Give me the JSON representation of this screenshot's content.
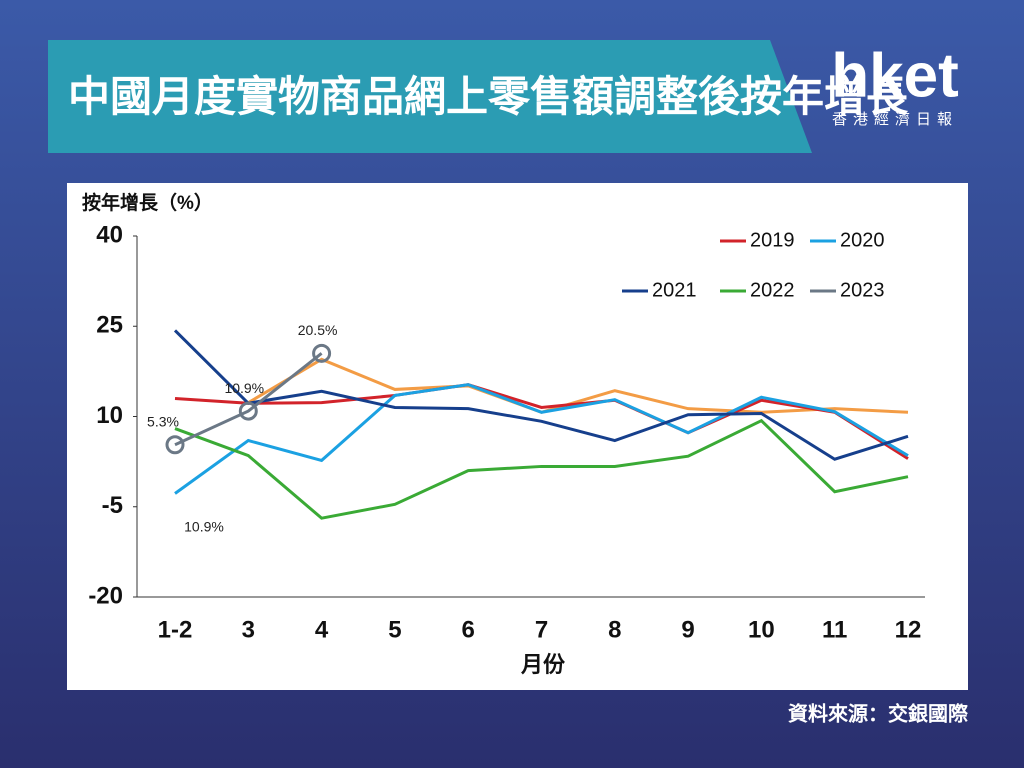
{
  "header": {
    "title": "中國月度實物商品網上零售額調整後按年增長",
    "logo": "hket",
    "logo_sub": "香港經濟日報"
  },
  "source": "資料來源：交銀國際",
  "chart_data": {
    "type": "line",
    "ylabel": "按年增長（%）",
    "xlabel": "月份",
    "categories": [
      "1-2",
      "3",
      "4",
      "5",
      "6",
      "7",
      "8",
      "9",
      "10",
      "11",
      "12"
    ],
    "ylim": [
      -20,
      40
    ],
    "yticks": [
      -20,
      -5,
      10,
      25,
      40
    ],
    "annotation": "10.9%",
    "series": [
      {
        "color": "#f39c45",
        "values": [
          null,
          12.3,
          19.5,
          14.5,
          15.1,
          10.7,
          14.3,
          11.3,
          10.7,
          11.3,
          10.7
        ]
      },
      {
        "name": "2019",
        "color": "#d2232a",
        "values": [
          13.0,
          12.2,
          12.3,
          13.5,
          15.3,
          11.5,
          12.7,
          7.3,
          12.7,
          10.7,
          3.0
        ]
      },
      {
        "name": "2020",
        "color": "#1ba1e2",
        "values": [
          -2.8,
          6.0,
          2.7,
          13.5,
          15.3,
          10.7,
          12.8,
          7.3,
          13.2,
          10.8,
          3.5
        ]
      },
      {
        "name": "2021",
        "color": "#163f8c",
        "values": [
          24.3,
          12.2,
          14.2,
          11.5,
          11.3,
          9.2,
          6.0,
          10.3,
          10.5,
          2.9,
          6.7
        ]
      },
      {
        "name": "2022",
        "color": "#3aaa35",
        "values": [
          8.0,
          3.5,
          -6.9,
          -4.6,
          1.0,
          1.7,
          1.7,
          3.4,
          9.3,
          -2.5,
          0.0
        ]
      },
      {
        "name": "2023",
        "color": "#6b7886",
        "markers": true,
        "values": [
          5.3,
          10.9,
          20.5,
          null,
          null,
          null,
          null,
          null,
          null,
          null,
          null
        ],
        "value_labels": [
          "5.3%",
          "10.9%",
          "20.5%",
          null,
          null,
          null,
          null,
          null,
          null,
          null,
          null
        ]
      }
    ]
  }
}
